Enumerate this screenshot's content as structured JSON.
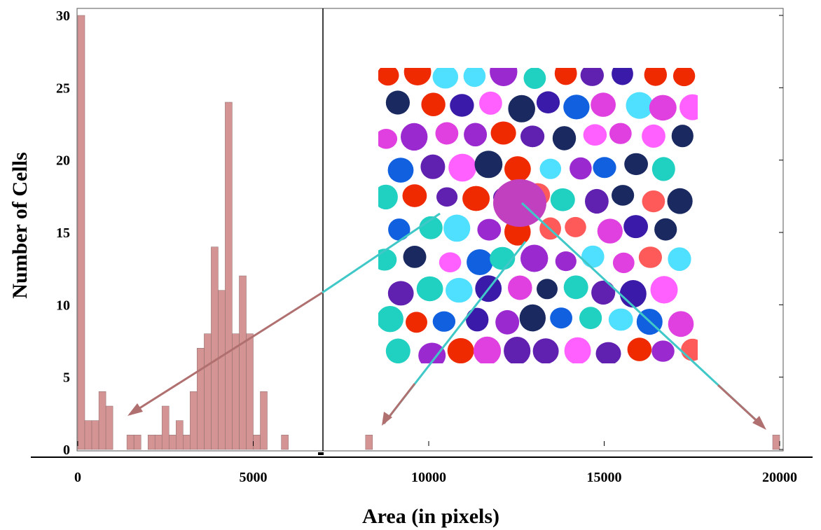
{
  "chart_data": {
    "type": "bar",
    "title": "",
    "xlabel": "Area (in pixels)",
    "ylabel": "Number of Cells",
    "xlim": [
      -200,
      20000
    ],
    "ylim": [
      0,
      30
    ],
    "x_ticks": [
      0,
      5000,
      10000,
      15000,
      20000
    ],
    "y_ticks": [
      0,
      5,
      10,
      15,
      20,
      25,
      30
    ],
    "x_tick_labels": [
      "0",
      "5000",
      "10000",
      "15000",
      "20000"
    ],
    "y_tick_labels": [
      "0",
      "5",
      "10",
      "15",
      "20",
      "25",
      "30"
    ],
    "bin_width": 200,
    "bins": [
      {
        "x": 0,
        "count": 30
      },
      {
        "x": 200,
        "count": 2
      },
      {
        "x": 400,
        "count": 2
      },
      {
        "x": 600,
        "count": 4
      },
      {
        "x": 800,
        "count": 3
      },
      {
        "x": 1400,
        "count": 1
      },
      {
        "x": 1600,
        "count": 1
      },
      {
        "x": 2000,
        "count": 1
      },
      {
        "x": 2200,
        "count": 1
      },
      {
        "x": 2400,
        "count": 3
      },
      {
        "x": 2600,
        "count": 1
      },
      {
        "x": 2800,
        "count": 2
      },
      {
        "x": 3000,
        "count": 1
      },
      {
        "x": 3200,
        "count": 4
      },
      {
        "x": 3400,
        "count": 7
      },
      {
        "x": 3600,
        "count": 8
      },
      {
        "x": 3800,
        "count": 14
      },
      {
        "x": 4000,
        "count": 11
      },
      {
        "x": 4200,
        "count": 24
      },
      {
        "x": 4400,
        "count": 8
      },
      {
        "x": 4600,
        "count": 12
      },
      {
        "x": 4800,
        "count": 8
      },
      {
        "x": 5000,
        "count": 1
      },
      {
        "x": 5200,
        "count": 4
      },
      {
        "x": 5800,
        "count": 1
      },
      {
        "x": 8200,
        "count": 1
      },
      {
        "x": 19800,
        "count": 1
      }
    ],
    "grid": false,
    "legend": "none",
    "colors": {
      "bar_fill": "#d49494",
      "bar_edge": "#ffffff",
      "arrow_head": "#b07070",
      "arrow_line": "#40c8c8",
      "axis": "#000000"
    },
    "inset": {
      "description_icon": "segmented-cells-image-icon",
      "cell_palette": [
        "#e040e0",
        "#9a2ad0",
        "#3a1aa8",
        "#ff5a5a",
        "#f02a00",
        "#50e0ff",
        "#20d0c0",
        "#1a2a60",
        "#6020b0",
        "#ff60ff",
        "#1060e0"
      ]
    }
  }
}
